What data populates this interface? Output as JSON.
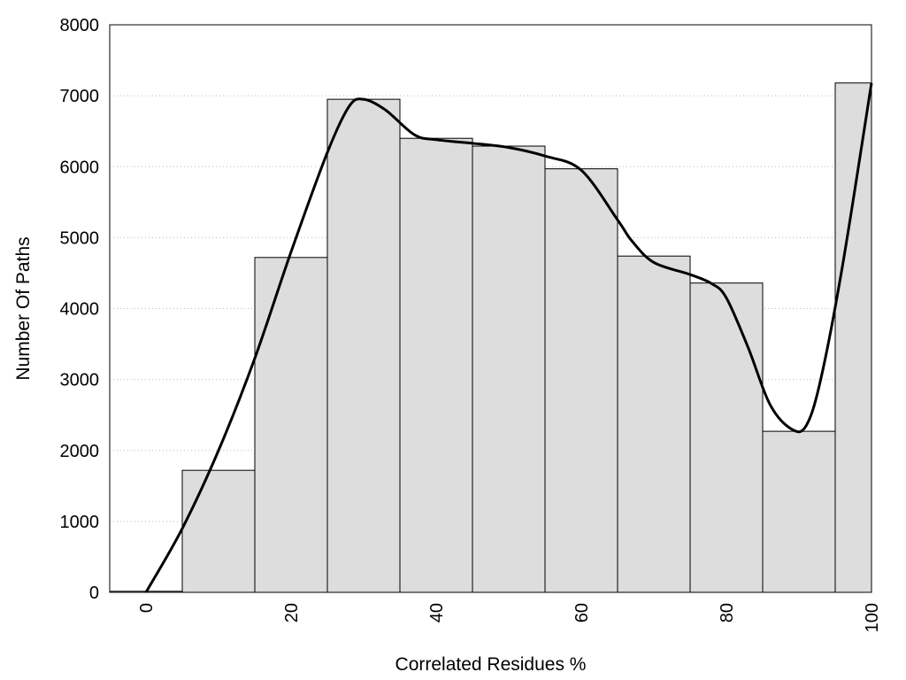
{
  "chart_data": {
    "type": "bar",
    "xlabel": "Correlated Residues %",
    "ylabel": "Number Of Paths",
    "xlim": [
      -5,
      100
    ],
    "ylim": [
      0,
      8000
    ],
    "grid": "horizontal-dotted",
    "bar_color": "#dddddd",
    "edge_color": "#000000",
    "line_color": "#000000",
    "bins": [
      {
        "start": -5,
        "end": 5,
        "value": 15
      },
      {
        "start": 5,
        "end": 15,
        "value": 1720
      },
      {
        "start": 15,
        "end": 25,
        "value": 4720
      },
      {
        "start": 25,
        "end": 35,
        "value": 6950
      },
      {
        "start": 35,
        "end": 45,
        "value": 6400
      },
      {
        "start": 45,
        "end": 55,
        "value": 6290
      },
      {
        "start": 55,
        "end": 65,
        "value": 5970
      },
      {
        "start": 65,
        "end": 75,
        "value": 4740
      },
      {
        "start": 75,
        "end": 85,
        "value": 4360
      },
      {
        "start": 85,
        "end": 95,
        "value": 2270
      },
      {
        "start": 95,
        "end": 100,
        "value": 7180
      }
    ],
    "x_ticks": [
      "0",
      "20",
      "40",
      "60",
      "80",
      "100"
    ],
    "x_tick_values": [
      0,
      20,
      40,
      60,
      80,
      100
    ],
    "y_ticks": [
      "0",
      "1000",
      "2000",
      "3000",
      "4000",
      "5000",
      "6000",
      "7000",
      "8000"
    ],
    "y_tick_values": [
      0,
      1000,
      2000,
      3000,
      4000,
      5000,
      6000,
      7000,
      8000
    ],
    "curve": [
      [
        0,
        0
      ],
      [
        5,
        900
      ],
      [
        10,
        2000
      ],
      [
        15,
        3300
      ],
      [
        20,
        4800
      ],
      [
        25,
        6200
      ],
      [
        28,
        6850
      ],
      [
        30,
        6950
      ],
      [
        33,
        6800
      ],
      [
        37,
        6450
      ],
      [
        40,
        6380
      ],
      [
        45,
        6330
      ],
      [
        50,
        6270
      ],
      [
        55,
        6150
      ],
      [
        60,
        5950
      ],
      [
        65,
        5250
      ],
      [
        67,
        4950
      ],
      [
        70,
        4650
      ],
      [
        75,
        4480
      ],
      [
        78,
        4350
      ],
      [
        80,
        4150
      ],
      [
        83,
        3450
      ],
      [
        86,
        2650
      ],
      [
        89,
        2300
      ],
      [
        91,
        2350
      ],
      [
        93,
        3000
      ],
      [
        96,
        4600
      ],
      [
        100,
        7180
      ]
    ]
  }
}
